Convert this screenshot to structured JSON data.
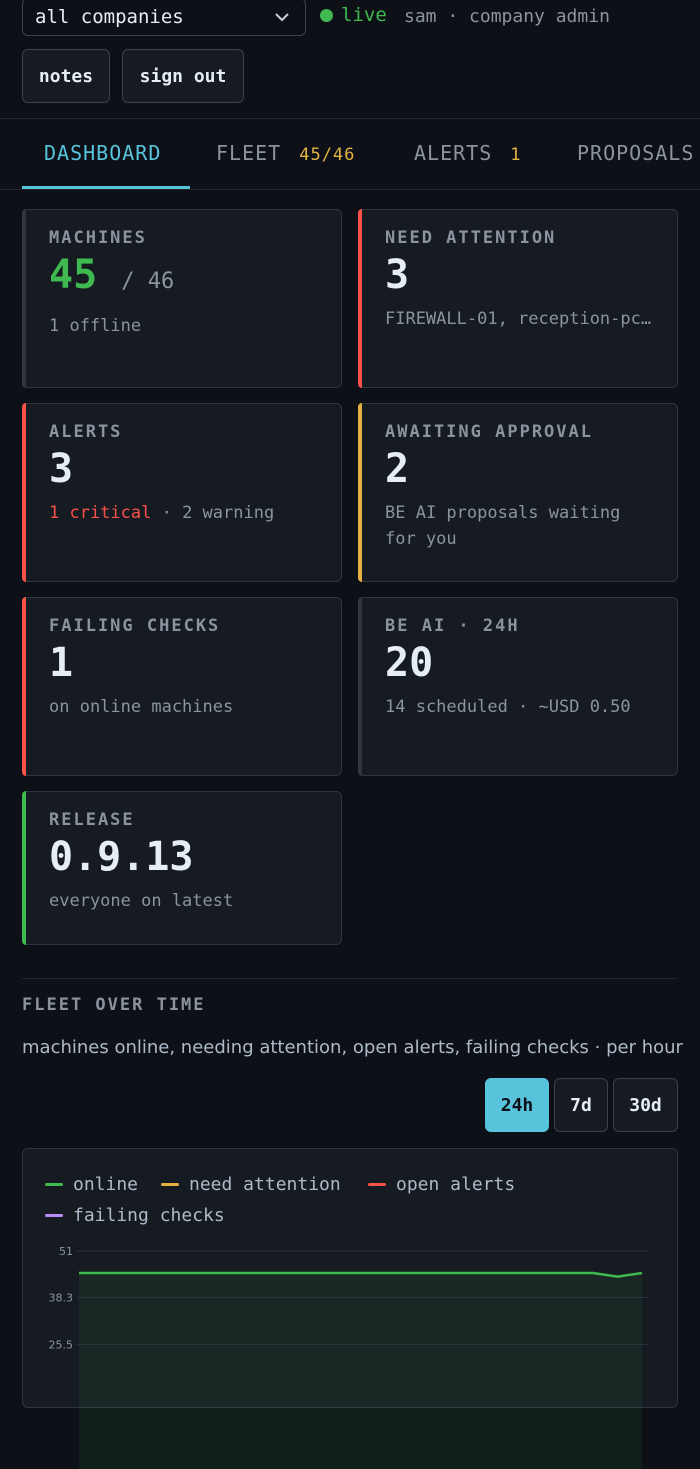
{
  "header": {
    "company_select": "all companies",
    "live_label": "live",
    "user_info": "sam · company admin",
    "notes_label": "notes",
    "signout_label": "sign out"
  },
  "tabs": [
    {
      "label": "DASHBOARD",
      "count": ""
    },
    {
      "label": "FLEET",
      "count": "45/46"
    },
    {
      "label": "ALERTS",
      "count": "1"
    },
    {
      "label": "PROPOSALS",
      "count": ""
    }
  ],
  "cards": {
    "machines": {
      "label": "MACHINES",
      "value": "45",
      "total": "/ 46",
      "sub": "1 offline"
    },
    "attention": {
      "label": "NEED ATTENTION",
      "value": "3",
      "sub": "FIREWALL-01, reception-pc…"
    },
    "alerts": {
      "label": "ALERTS",
      "value": "3",
      "critical": "1 critical",
      "warning": " · 2 warning"
    },
    "approval": {
      "label": "AWAITING APPROVAL",
      "value": "2",
      "sub": "BE AI proposals waiting for you"
    },
    "failing": {
      "label": "FAILING CHECKS",
      "value": "1",
      "sub": "on online machines"
    },
    "beai": {
      "label": "BE AI · 24H",
      "value": "20",
      "sub": "14 scheduled · ~USD 0.50"
    },
    "release": {
      "label": "RELEASE",
      "value": "0.9.13",
      "sub": "everyone on latest"
    }
  },
  "accents": {
    "green": "#3fb950",
    "red": "#f85149",
    "yellow": "#e3b341",
    "gray": "#30363d",
    "purple": "#bc8cff",
    "cyan": "#58c4dc"
  },
  "fleet_over_time": {
    "title": "FLEET OVER TIME",
    "subtitle": "machines online, needing attention, open alerts, failing checks · per hour",
    "ranges": [
      "24h",
      "7d",
      "30d"
    ],
    "selected_range": "24h"
  },
  "chart_data": {
    "type": "area",
    "legend": [
      "online",
      "need attention",
      "open alerts",
      "failing checks"
    ],
    "y_ticks": [
      "51",
      "38.3",
      "25.5"
    ],
    "ylim": [
      0,
      51
    ],
    "series": [
      {
        "name": "online",
        "color": "#3fb950",
        "values": [
          45,
          45,
          45,
          45,
          45,
          45,
          45,
          45,
          45,
          45,
          45,
          45,
          45,
          45,
          45,
          45,
          45,
          45,
          45,
          45,
          45,
          45,
          44,
          45
        ]
      }
    ]
  }
}
